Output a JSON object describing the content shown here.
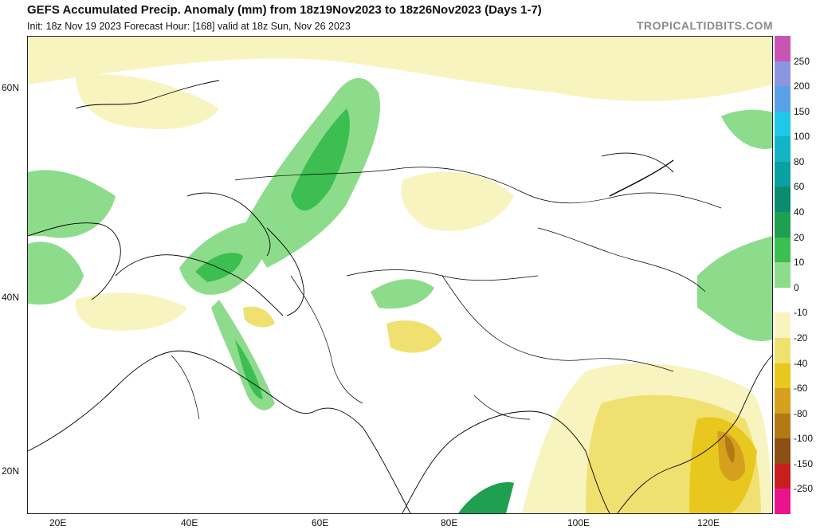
{
  "header": {
    "title": "GEFS Accumulated Precip. Anomaly (mm) from 18z19Nov2023 to 18z26Nov2023 (Days 1-7)",
    "subtitle": "Init: 18z Nov 19 2023   Forecast Hour: [168]   valid at 18z Sun, Nov 26 2023",
    "brand": "TROPICALTIDBITS.COM"
  },
  "lat_labels": [
    "60N",
    "40N",
    "20N"
  ],
  "lon_labels": [
    "20E",
    "40E",
    "60E",
    "80E",
    "100E",
    "120E"
  ],
  "colorbar": {
    "labels": [
      "250",
      "200",
      "150",
      "100",
      "80",
      "60",
      "40",
      "20",
      "10",
      "0",
      "-10",
      "-20",
      "-40",
      "-60",
      "-80",
      "-100",
      "-150",
      "-250"
    ],
    "colors": [
      "#c855b4",
      "#8c96e0",
      "#5aa0e6",
      "#1ec8e6",
      "#14b4c8",
      "#0aa0a0",
      "#0a8c6e",
      "#1ea050",
      "#3cbe50",
      "#8cdc8c",
      "#ffffff",
      "#f8f4c0",
      "#f0e070",
      "#e8c81e",
      "#d4a01e",
      "#b47814",
      "#8c5014",
      "#c81e1e",
      "#e8148c"
    ]
  }
}
